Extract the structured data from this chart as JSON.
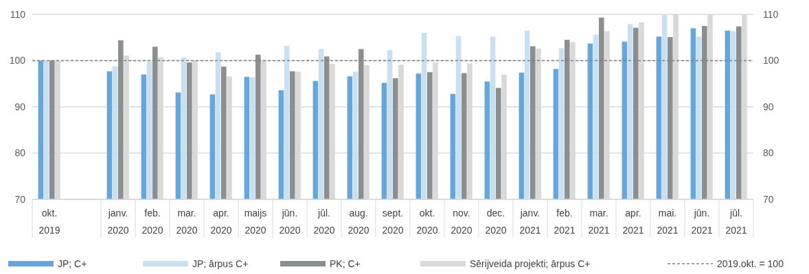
{
  "chart_data": {
    "type": "bar",
    "categories": [
      "okt. 2019",
      null,
      "janv. 2020",
      "feb. 2020",
      "mar. 2020",
      "apr. 2020",
      "maijs 2020",
      "jūn. 2020",
      "jūl. 2020",
      "aug. 2020",
      "sept. 2020",
      "okt. 2020",
      "nov. 2020",
      "dec. 2020",
      "janv. 2021",
      "feb. 2021",
      "mar. 2021",
      "apr. 2021",
      "mai. 2021",
      "jūn. 2021",
      "jūl. 2021"
    ],
    "series": [
      {
        "name": "JP; C+",
        "color": "#65a7dc",
        "values": [
          100,
          null,
          97.7,
          97.0,
          93.1,
          92.7,
          96.5,
          93.6,
          95.6,
          96.6,
          95.2,
          97.2,
          92.8,
          95.5,
          97.4,
          98.2,
          103.7,
          104.1,
          105.2,
          107.0,
          106.5
        ]
      },
      {
        "name": "JP; ārpus C+",
        "color": "#c9dff2",
        "values": [
          100,
          null,
          98.8,
          99.8,
          100.7,
          101.8,
          96.4,
          103.2,
          102.5,
          97.6,
          102.3,
          106.0,
          105.3,
          105.2,
          106.5,
          102.7,
          105.6,
          107.9,
          110,
          105.2,
          106.4
        ]
      },
      {
        "name": "PK; C+",
        "color": "#8b8f90",
        "values": [
          100,
          null,
          104.4,
          103.0,
          99.6,
          98.7,
          101.3,
          97.7,
          100.9,
          102.5,
          96.2,
          97.5,
          97.3,
          94.1,
          103.1,
          104.5,
          109.3,
          107.1,
          105.1,
          107.5,
          107.4
        ]
      },
      {
        "name": "Sērijveida projekti; ārpus C+",
        "color": "#d9d9d9",
        "values": [
          100,
          null,
          101.1,
          100.7,
          100,
          96.6,
          100,
          97.6,
          99.3,
          99.0,
          99.1,
          99.6,
          99.4,
          97.0,
          102.6,
          104.0,
          106.4,
          108.3,
          110,
          110,
          110
        ]
      }
    ],
    "ylim": [
      70,
      110
    ],
    "yticks": [
      70,
      80,
      90,
      100,
      110
    ],
    "y2lim": [
      70,
      110
    ],
    "y2ticks": [
      70,
      80,
      90,
      100,
      110
    ],
    "grid": "y",
    "legend": "bottom",
    "ref_lines": [
      {
        "axis": "y",
        "value": 100,
        "label": "2019.okt. = 100",
        "color": "#7f7f7f",
        "line_style": "dashed"
      }
    ]
  }
}
